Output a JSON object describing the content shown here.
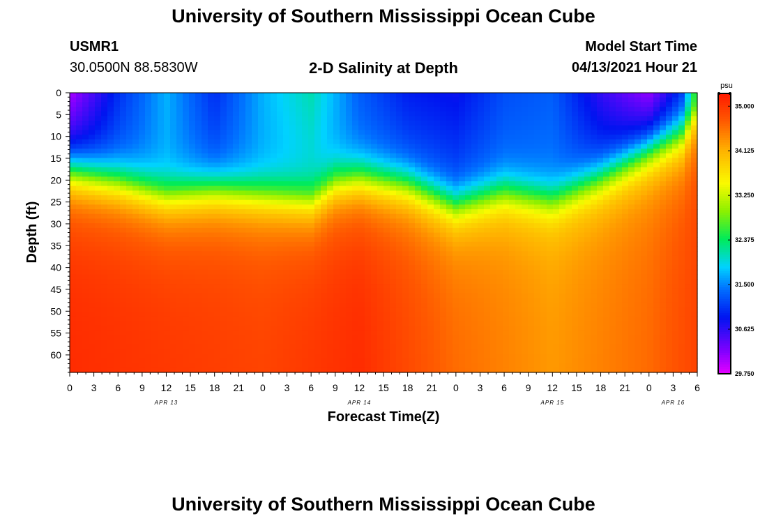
{
  "header": {
    "title_top": "University of Southern Mississippi Ocean Cube",
    "title_bottom": "University of Southern Mississippi Ocean Cube",
    "station_id": "USMR1",
    "coordinates": "30.0500N  88.5830W",
    "plot_title": "2-D Salinity at Depth",
    "model_start_label": "Model Start Time",
    "model_start_value": "04/13/2021 Hour 21"
  },
  "chart_data": {
    "type": "heatmap",
    "title": "2-D Salinity at Depth",
    "xlabel": "Forecast Time(Z)",
    "ylabel": "Depth (ft)",
    "x_ticks": [
      "0",
      "3",
      "6",
      "9",
      "12",
      "15",
      "18",
      "21",
      "0",
      "3",
      "6",
      "9",
      "12",
      "15",
      "18",
      "21",
      "0",
      "3",
      "6",
      "9",
      "12",
      "15",
      "18",
      "21",
      "0",
      "3",
      "6"
    ],
    "x_range_hours": [
      0,
      78
    ],
    "date_labels": [
      {
        "label": "APR 13",
        "hour": 12
      },
      {
        "label": "APR 14",
        "hour": 36
      },
      {
        "label": "APR 15",
        "hour": 60
      },
      {
        "label": "APR 16",
        "hour": 75
      }
    ],
    "y_ticks": [
      "0",
      "5",
      "10",
      "15",
      "20",
      "25",
      "30",
      "35",
      "40",
      "45",
      "50",
      "55",
      "60"
    ],
    "y_range_ft": [
      0,
      64
    ],
    "colorbar": {
      "unit": "psu",
      "ticks": [
        "35.000",
        "34.125",
        "33.250",
        "32.375",
        "31.500",
        "30.625",
        "29.750"
      ],
      "range": [
        29.75,
        35.25
      ]
    },
    "halocline_depth_ft": {
      "hours": [
        0,
        6,
        12,
        18,
        24,
        30,
        33,
        36,
        42,
        48,
        54,
        60,
        66,
        72,
        76,
        78
      ],
      "depth": [
        17,
        19,
        22,
        21,
        22,
        23,
        19,
        18,
        20,
        25,
        22,
        24,
        19,
        13,
        9,
        2
      ]
    },
    "surface_salinity_psu": {
      "hours": [
        0,
        6,
        12,
        18,
        24,
        30,
        36,
        42,
        48,
        54,
        60,
        66,
        72,
        76,
        78
      ],
      "values": [
        30.0,
        31.0,
        31.7,
        31.0,
        31.7,
        32.1,
        31.3,
        30.9,
        30.8,
        31.2,
        31.3,
        30.6,
        30.1,
        31.0,
        32.5
      ]
    },
    "bottom_salinity_psu": {
      "hours": [
        0,
        12,
        24,
        36,
        48,
        60,
        72,
        78
      ],
      "values": [
        35.1,
        35.0,
        34.9,
        35.1,
        34.6,
        34.3,
        34.6,
        34.9
      ]
    }
  }
}
